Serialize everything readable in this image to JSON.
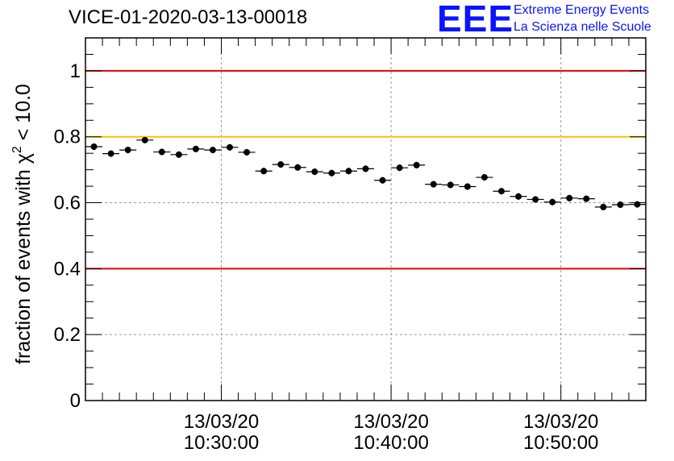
{
  "chart_data": {
    "type": "scatter",
    "title": "VICE-01-2020-03-13-00018",
    "ylabel": {
      "prefix": "fraction of events with ",
      "symbol": "χ",
      "sup": "2",
      "suffix": " < 10.0"
    },
    "xlabel": "",
    "ylim": [
      0,
      1.1
    ],
    "yticks": [
      "0",
      "0.2",
      "0.4",
      "0.6",
      "0.8",
      "1"
    ],
    "ytick_values": [
      0,
      0.2,
      0.4,
      0.6,
      0.8,
      1.0
    ],
    "xlim": [
      "10:22:00",
      "10:55:00"
    ],
    "xticks": [
      {
        "time": "10:30:00",
        "date": "13/03/20"
      },
      {
        "time": "10:40:00",
        "date": "13/03/20"
      },
      {
        "time": "10:50:00",
        "date": "13/03/20"
      }
    ],
    "grid": true,
    "reference_lines": [
      {
        "y": 1.0,
        "color": "#e60000"
      },
      {
        "y": 0.8,
        "color": "#ffbf00"
      },
      {
        "y": 0.4,
        "color": "#e60000"
      }
    ],
    "bin_minutes": 1,
    "x": [
      "10:22:30",
      "10:23:30",
      "10:24:30",
      "10:25:30",
      "10:26:30",
      "10:27:30",
      "10:28:30",
      "10:29:30",
      "10:30:30",
      "10:31:30",
      "10:32:30",
      "10:33:30",
      "10:34:30",
      "10:35:30",
      "10:36:30",
      "10:37:30",
      "10:38:30",
      "10:39:30",
      "10:40:30",
      "10:41:30",
      "10:42:30",
      "10:43:30",
      "10:44:30",
      "10:45:30",
      "10:46:30",
      "10:47:30",
      "10:48:30",
      "10:49:30",
      "10:50:30",
      "10:51:30",
      "10:52:30",
      "10:53:30",
      "10:54:30"
    ],
    "values": [
      0.77,
      0.749,
      0.76,
      0.79,
      0.754,
      0.746,
      0.763,
      0.76,
      0.768,
      0.753,
      0.696,
      0.716,
      0.707,
      0.694,
      0.69,
      0.696,
      0.703,
      0.668,
      0.706,
      0.714,
      0.656,
      0.654,
      0.649,
      0.677,
      0.635,
      0.619,
      0.61,
      0.602,
      0.614,
      0.612,
      0.587,
      0.594,
      0.595
    ],
    "errors": [
      0.01,
      0.01,
      0.01,
      0.008,
      0.01,
      0.01,
      0.01,
      0.01,
      0.01,
      0.01,
      0.01,
      0.01,
      0.01,
      0.01,
      0.01,
      0.01,
      0.01,
      0.01,
      0.01,
      0.01,
      0.01,
      0.01,
      0.01,
      0.01,
      0.01,
      0.01,
      0.01,
      0.01,
      0.01,
      0.01,
      0.01,
      0.01,
      0.01
    ],
    "colors": {
      "marker": "#000000",
      "grid": "#9a9a9a",
      "axis": "#000000"
    }
  },
  "logo": {
    "mark": "EEE",
    "line1": "Extreme Energy Events",
    "line2": "La Scienza nelle Scuole",
    "color": "#0a14ff"
  }
}
